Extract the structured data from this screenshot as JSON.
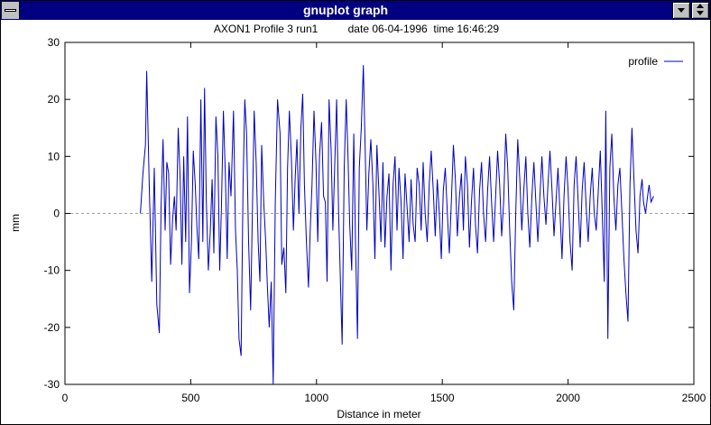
{
  "window": {
    "title": "gnuplot graph"
  },
  "chart_data": {
    "type": "line",
    "title": "AXON1 Profile 3 run1          date 06-04-1996  time 16:46:29",
    "xlabel": "Distance in meter",
    "ylabel": "mm",
    "xlim": [
      0,
      2500
    ],
    "ylim": [
      -30,
      30
    ],
    "xticks": [
      "0",
      "500",
      "1000",
      "1500",
      "2000",
      "2500"
    ],
    "yticks": [
      "30",
      "20",
      "10",
      "0",
      "-10",
      "-20",
      "-30"
    ],
    "legend_position": "top-right",
    "zero_line": true,
    "series": [
      {
        "name": "profile",
        "color": "#0000c0",
        "points": [
          [
            300,
            0
          ],
          [
            310,
            7
          ],
          [
            320,
            12
          ],
          [
            325,
            25
          ],
          [
            335,
            5
          ],
          [
            345,
            -12
          ],
          [
            355,
            8
          ],
          [
            365,
            -16
          ],
          [
            375,
            -21
          ],
          [
            382,
            1
          ],
          [
            390,
            13
          ],
          [
            398,
            -3
          ],
          [
            405,
            9
          ],
          [
            412,
            7
          ],
          [
            420,
            -9
          ],
          [
            428,
            -1
          ],
          [
            435,
            3
          ],
          [
            442,
            -3
          ],
          [
            450,
            15
          ],
          [
            458,
            6
          ],
          [
            465,
            -9
          ],
          [
            472,
            10
          ],
          [
            480,
            -5
          ],
          [
            487,
            17
          ],
          [
            495,
            -14
          ],
          [
            503,
            -5
          ],
          [
            510,
            11
          ],
          [
            518,
            5
          ],
          [
            525,
            -3
          ],
          [
            532,
            -8
          ],
          [
            540,
            20
          ],
          [
            548,
            -5
          ],
          [
            555,
            22
          ],
          [
            562,
            2
          ],
          [
            570,
            -10
          ],
          [
            578,
            -3
          ],
          [
            585,
            6
          ],
          [
            592,
            -7
          ],
          [
            600,
            17
          ],
          [
            608,
            10
          ],
          [
            615,
            -10
          ],
          [
            622,
            1
          ],
          [
            630,
            18
          ],
          [
            638,
            6
          ],
          [
            645,
            -8
          ],
          [
            652,
            9
          ],
          [
            660,
            3
          ],
          [
            670,
            18
          ],
          [
            678,
            -3
          ],
          [
            685,
            -10
          ],
          [
            692,
            -22
          ],
          [
            700,
            -25
          ],
          [
            708,
            5
          ],
          [
            715,
            20
          ],
          [
            722,
            14
          ],
          [
            730,
            -5
          ],
          [
            738,
            -17
          ],
          [
            745,
            0
          ],
          [
            752,
            18
          ],
          [
            760,
            9
          ],
          [
            768,
            -5
          ],
          [
            775,
            -12
          ],
          [
            782,
            12
          ],
          [
            790,
            2
          ],
          [
            798,
            -5
          ],
          [
            805,
            -13
          ],
          [
            812,
            -20
          ],
          [
            820,
            -12
          ],
          [
            828,
            -30
          ],
          [
            836,
            2
          ],
          [
            845,
            20
          ],
          [
            855,
            14
          ],
          [
            862,
            -9
          ],
          [
            870,
            -6
          ],
          [
            878,
            -14
          ],
          [
            885,
            8
          ],
          [
            892,
            18
          ],
          [
            900,
            10
          ],
          [
            908,
            -3
          ],
          [
            915,
            6
          ],
          [
            922,
            13
          ],
          [
            930,
            0
          ],
          [
            938,
            15
          ],
          [
            945,
            21
          ],
          [
            952,
            5
          ],
          [
            960,
            -5
          ],
          [
            968,
            -13
          ],
          [
            975,
            -3
          ],
          [
            982,
            5
          ],
          [
            990,
            18
          ],
          [
            998,
            9
          ],
          [
            1005,
            -5
          ],
          [
            1012,
            10
          ],
          [
            1020,
            16
          ],
          [
            1028,
            3
          ],
          [
            1035,
            2
          ],
          [
            1042,
            -12
          ],
          [
            1050,
            20
          ],
          [
            1058,
            11
          ],
          [
            1065,
            -3
          ],
          [
            1072,
            8
          ],
          [
            1080,
            20
          ],
          [
            1088,
            0
          ],
          [
            1095,
            -12
          ],
          [
            1102,
            -23
          ],
          [
            1110,
            8
          ],
          [
            1118,
            20
          ],
          [
            1125,
            10
          ],
          [
            1132,
            -2
          ],
          [
            1140,
            -10
          ],
          [
            1148,
            14
          ],
          [
            1155,
            -5
          ],
          [
            1163,
            -22
          ],
          [
            1170,
            8
          ],
          [
            1178,
            15
          ],
          [
            1186,
            26
          ],
          [
            1194,
            10
          ],
          [
            1200,
            -3
          ],
          [
            1208,
            7
          ],
          [
            1216,
            13
          ],
          [
            1224,
            5
          ],
          [
            1232,
            -8
          ],
          [
            1240,
            12
          ],
          [
            1248,
            4
          ],
          [
            1256,
            -5
          ],
          [
            1264,
            9
          ],
          [
            1272,
            -6
          ],
          [
            1280,
            3
          ],
          [
            1288,
            7
          ],
          [
            1296,
            -10
          ],
          [
            1304,
            5
          ],
          [
            1312,
            10
          ],
          [
            1320,
            -3
          ],
          [
            1328,
            8
          ],
          [
            1336,
            2
          ],
          [
            1344,
            -8
          ],
          [
            1352,
            7
          ],
          [
            1360,
            1
          ],
          [
            1368,
            -5
          ],
          [
            1376,
            6
          ],
          [
            1384,
            -2
          ],
          [
            1392,
            -5
          ],
          [
            1400,
            8
          ],
          [
            1408,
            5
          ],
          [
            1416,
            -3
          ],
          [
            1424,
            9
          ],
          [
            1432,
            0
          ],
          [
            1440,
            -5
          ],
          [
            1448,
            5
          ],
          [
            1456,
            11
          ],
          [
            1464,
            4
          ],
          [
            1472,
            -4
          ],
          [
            1480,
            6
          ],
          [
            1488,
            0
          ],
          [
            1496,
            -8
          ],
          [
            1504,
            4
          ],
          [
            1512,
            8
          ],
          [
            1520,
            0
          ],
          [
            1528,
            -7
          ],
          [
            1536,
            2
          ],
          [
            1544,
            12
          ],
          [
            1552,
            6
          ],
          [
            1560,
            -4
          ],
          [
            1568,
            3
          ],
          [
            1576,
            7
          ],
          [
            1584,
            -3
          ],
          [
            1592,
            10
          ],
          [
            1600,
            5
          ],
          [
            1608,
            -6
          ],
          [
            1616,
            2
          ],
          [
            1624,
            8
          ],
          [
            1632,
            -2
          ],
          [
            1640,
            -7
          ],
          [
            1648,
            4
          ],
          [
            1656,
            9
          ],
          [
            1664,
            0
          ],
          [
            1672,
            -5
          ],
          [
            1680,
            4
          ],
          [
            1688,
            10
          ],
          [
            1696,
            2
          ],
          [
            1704,
            -5
          ],
          [
            1712,
            3
          ],
          [
            1720,
            11
          ],
          [
            1728,
            5
          ],
          [
            1736,
            -4
          ],
          [
            1744,
            2
          ],
          [
            1752,
            14
          ],
          [
            1760,
            8
          ],
          [
            1768,
            -3
          ],
          [
            1776,
            -12
          ],
          [
            1784,
            -17
          ],
          [
            1792,
            0
          ],
          [
            1800,
            13
          ],
          [
            1808,
            6
          ],
          [
            1816,
            -3
          ],
          [
            1824,
            4
          ],
          [
            1832,
            10
          ],
          [
            1840,
            0
          ],
          [
            1848,
            -6
          ],
          [
            1856,
            3
          ],
          [
            1864,
            9
          ],
          [
            1872,
            2
          ],
          [
            1880,
            -5
          ],
          [
            1888,
            3
          ],
          [
            1896,
            10
          ],
          [
            1904,
            3
          ],
          [
            1912,
            -2
          ],
          [
            1920,
            5
          ],
          [
            1928,
            11
          ],
          [
            1936,
            4
          ],
          [
            1944,
            -4
          ],
          [
            1952,
            2
          ],
          [
            1960,
            8
          ],
          [
            1968,
            0
          ],
          [
            1976,
            -8
          ],
          [
            1984,
            3
          ],
          [
            1992,
            10
          ],
          [
            2000,
            4
          ],
          [
            2008,
            -5
          ],
          [
            2016,
            -10
          ],
          [
            2024,
            5
          ],
          [
            2032,
            10
          ],
          [
            2040,
            2
          ],
          [
            2048,
            -6
          ],
          [
            2056,
            4
          ],
          [
            2064,
            9
          ],
          [
            2072,
            1
          ],
          [
            2080,
            -5
          ],
          [
            2088,
            3
          ],
          [
            2096,
            8
          ],
          [
            2104,
            0
          ],
          [
            2112,
            -3
          ],
          [
            2120,
            4
          ],
          [
            2128,
            11
          ],
          [
            2136,
            0
          ],
          [
            2144,
            -12
          ],
          [
            2150,
            18
          ],
          [
            2158,
            -22
          ],
          [
            2166,
            8
          ],
          [
            2174,
            14
          ],
          [
            2182,
            3
          ],
          [
            2190,
            -3
          ],
          [
            2198,
            5
          ],
          [
            2206,
            8
          ],
          [
            2214,
            0
          ],
          [
            2222,
            -8
          ],
          [
            2230,
            -14
          ],
          [
            2238,
            -19
          ],
          [
            2246,
            5
          ],
          [
            2254,
            15
          ],
          [
            2262,
            6
          ],
          [
            2270,
            -3
          ],
          [
            2278,
            -7
          ],
          [
            2286,
            3
          ],
          [
            2294,
            6
          ],
          [
            2300,
            2
          ],
          [
            2308,
            0
          ],
          [
            2316,
            3
          ],
          [
            2322,
            5
          ],
          [
            2330,
            2
          ],
          [
            2340,
            3
          ]
        ]
      }
    ]
  }
}
